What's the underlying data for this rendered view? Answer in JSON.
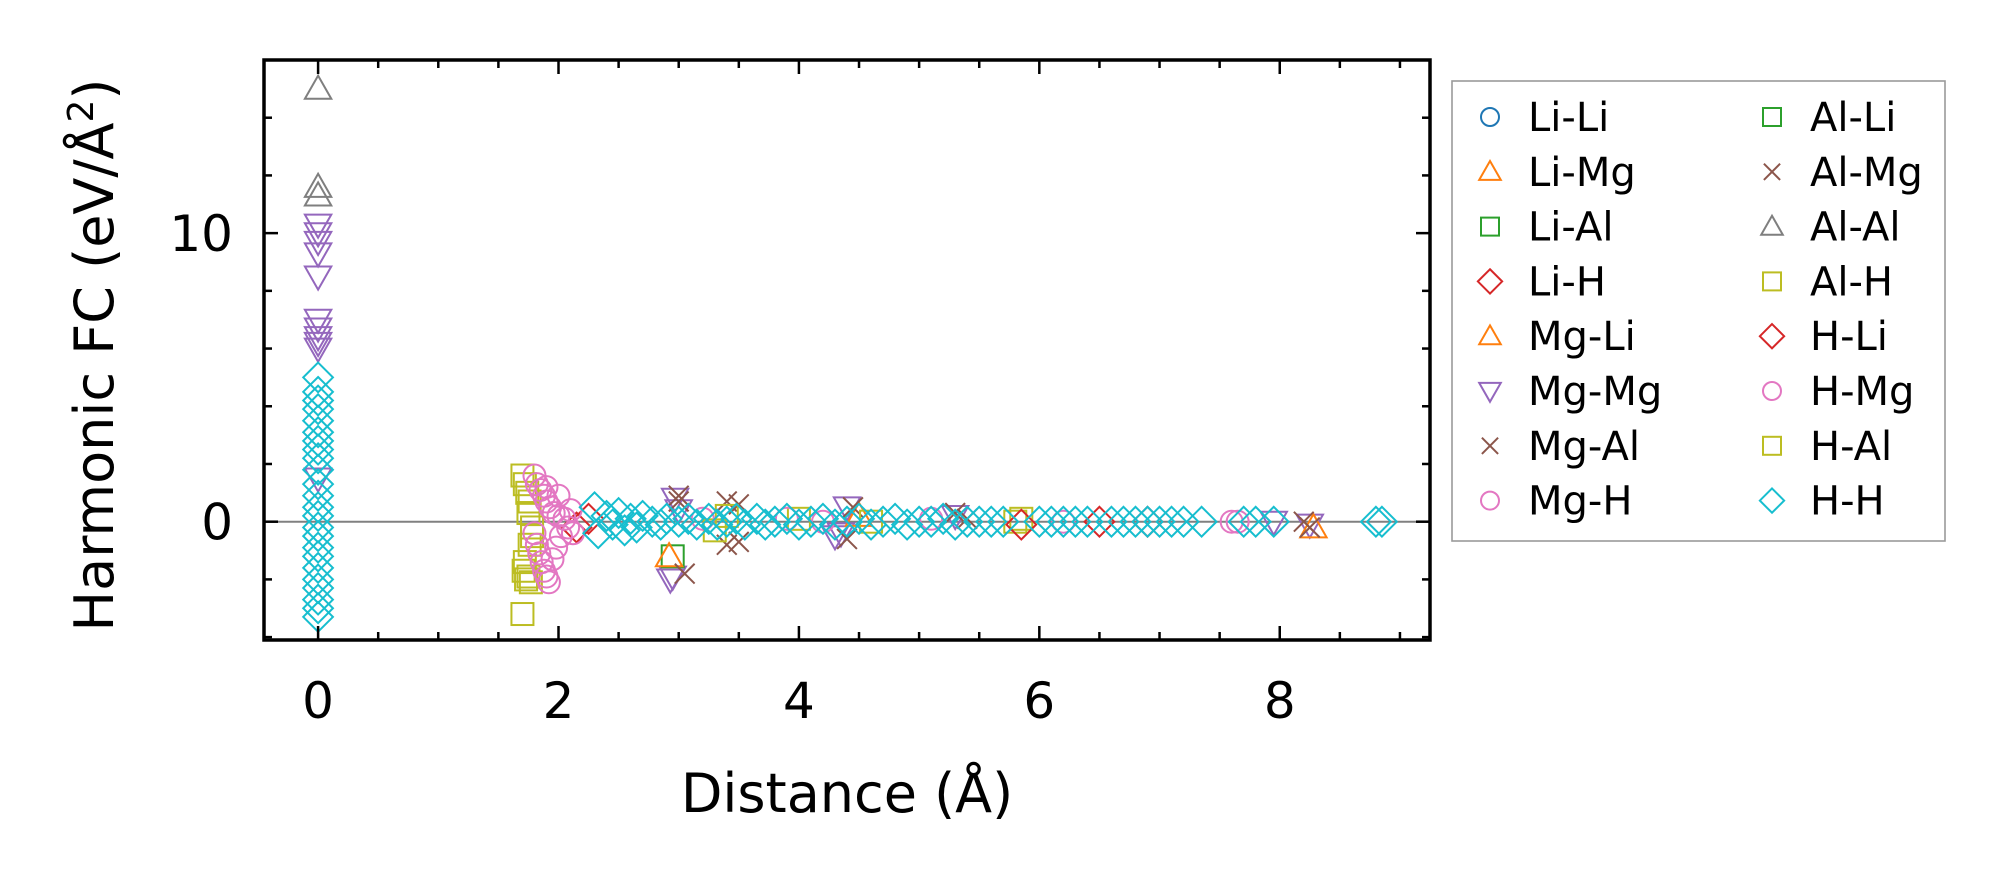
{
  "chart_data": {
    "type": "scatter",
    "title": "",
    "xlabel": "Distance (Å)",
    "ylabel_main": "Harmonic FC (eV/Å",
    "ylabel_sup": "2",
    "ylabel_close": ")",
    "xlim": [
      -0.45,
      9.25
    ],
    "ylim": [
      -4.1,
      16.0
    ],
    "xticks": [
      0,
      2,
      4,
      6,
      8
    ],
    "xtick_labels": [
      "0",
      "2",
      "4",
      "6",
      "8"
    ],
    "yticks": [
      0,
      10
    ],
    "ytick_labels": [
      "0",
      "10"
    ],
    "x_minor_step": 0.5,
    "y_minor_step": 2,
    "zero_line": true,
    "grid": false,
    "legend_position": "outside-right",
    "legend": [
      {
        "name": "Li-Li",
        "marker": "circle",
        "color": "#1f77b4"
      },
      {
        "name": "Li-Mg",
        "marker": "triangle-up",
        "color": "#ff7f0e"
      },
      {
        "name": "Li-Al",
        "marker": "square",
        "color": "#2ca02c"
      },
      {
        "name": "Li-H",
        "marker": "diamond",
        "color": "#d62728"
      },
      {
        "name": "Mg-Li",
        "marker": "triangle-up",
        "color": "#ff7f0e"
      },
      {
        "name": "Mg-Mg",
        "marker": "triangle-down",
        "color": "#9467bd"
      },
      {
        "name": "Mg-Al",
        "marker": "x",
        "color": "#8c564b"
      },
      {
        "name": "Mg-H",
        "marker": "circle",
        "color": "#e377c2"
      },
      {
        "name": "Al-Li",
        "marker": "square",
        "color": "#2ca02c"
      },
      {
        "name": "Al-Mg",
        "marker": "x",
        "color": "#8c564b"
      },
      {
        "name": "Al-Al",
        "marker": "triangle-up",
        "color": "#7f7f7f"
      },
      {
        "name": "Al-H",
        "marker": "square",
        "color": "#bcbd22"
      },
      {
        "name": "H-Li",
        "marker": "diamond",
        "color": "#d62728"
      },
      {
        "name": "H-Mg",
        "marker": "circle",
        "color": "#e377c2"
      },
      {
        "name": "H-Al",
        "marker": "square",
        "color": "#bcbd22"
      },
      {
        "name": "H-H",
        "marker": "diamond",
        "color": "#17becf"
      }
    ],
    "series": [
      {
        "name": "Al-Al",
        "marker": "triangle-up",
        "color": "#7f7f7f",
        "points": [
          [
            0,
            15.0
          ],
          [
            0,
            11.6
          ],
          [
            0,
            11.3
          ]
        ]
      },
      {
        "name": "Mg-Mg",
        "marker": "triangle-down",
        "color": "#9467bd",
        "points": [
          [
            0,
            10.3
          ],
          [
            0,
            10.0
          ],
          [
            0,
            9.7
          ],
          [
            0,
            9.3
          ],
          [
            0,
            8.5
          ],
          [
            0,
            7.0
          ],
          [
            0,
            6.7
          ],
          [
            0,
            6.4
          ],
          [
            0,
            6.2
          ],
          [
            0,
            6.0
          ],
          [
            0,
            1.5
          ],
          [
            2.97,
            0.8
          ],
          [
            2.95,
            -1.9
          ],
          [
            2.93,
            -2.0
          ],
          [
            3.0,
            0.4
          ],
          [
            4.4,
            0.5
          ],
          [
            4.3,
            -0.5
          ],
          [
            4.35,
            -0.4
          ],
          [
            7.95,
            0.0
          ],
          [
            8.25,
            -0.1
          ],
          [
            5.3,
            0.2
          ]
        ]
      },
      {
        "name": "Li-Al",
        "marker": "square",
        "color": "#2ca02c",
        "points": [
          [
            2.95,
            -1.2
          ]
        ]
      },
      {
        "name": "Li-Mg",
        "marker": "triangle-up",
        "color": "#ff7f0e",
        "points": [
          [
            2.92,
            -1.2
          ],
          [
            4.5,
            0.2
          ],
          [
            8.28,
            -0.2
          ]
        ]
      },
      {
        "name": "Mg-Al",
        "marker": "x",
        "color": "#8c564b",
        "points": [
          [
            3.0,
            0.9
          ],
          [
            3.05,
            -1.8
          ],
          [
            3.0,
            0.7
          ],
          [
            3.4,
            0.7
          ],
          [
            3.5,
            0.6
          ],
          [
            3.4,
            -0.8
          ],
          [
            3.5,
            -0.7
          ],
          [
            4.4,
            -0.6
          ],
          [
            4.45,
            0.5
          ],
          [
            5.3,
            0.3
          ],
          [
            5.4,
            0.1
          ],
          [
            8.2,
            0.0
          ],
          [
            8.25,
            -0.2
          ]
        ]
      },
      {
        "name": "Al-H",
        "marker": "square",
        "color": "#bcbd22",
        "points": [
          [
            1.7,
            1.6
          ],
          [
            1.72,
            1.3
          ],
          [
            1.74,
            1.0
          ],
          [
            1.76,
            0.7
          ],
          [
            1.75,
            0.3
          ],
          [
            1.78,
            -0.2
          ],
          [
            1.72,
            -1.4
          ],
          [
            1.71,
            -1.7
          ],
          [
            1.73,
            -2.0
          ],
          [
            1.75,
            -1.9
          ],
          [
            1.77,
            -2.1
          ],
          [
            1.7,
            -3.2
          ],
          [
            1.76,
            -0.8
          ],
          [
            1.78,
            -0.5
          ],
          [
            3.3,
            -0.3
          ],
          [
            3.4,
            0.2
          ],
          [
            4.0,
            0.1
          ],
          [
            4.6,
            0.0
          ],
          [
            5.8,
            0.0
          ],
          [
            5.85,
            0.1
          ]
        ]
      },
      {
        "name": "Li-H",
        "marker": "diamond",
        "color": "#d62728",
        "points": [
          [
            2.15,
            -0.2
          ],
          [
            2.25,
            0.1
          ],
          [
            5.85,
            -0.1
          ],
          [
            6.5,
            0.0
          ],
          [
            6.9,
            0.0
          ]
        ]
      },
      {
        "name": "H-Mg",
        "marker": "circle",
        "color": "#e377c2",
        "points": [
          [
            1.8,
            1.6
          ],
          [
            1.82,
            1.3
          ],
          [
            1.85,
            1.1
          ],
          [
            1.88,
            0.9
          ],
          [
            1.9,
            0.7
          ],
          [
            1.93,
            0.5
          ],
          [
            1.96,
            0.3
          ],
          [
            2.0,
            0.2
          ],
          [
            2.05,
            0.1
          ],
          [
            1.8,
            -0.4
          ],
          [
            1.82,
            -0.8
          ],
          [
            1.84,
            -1.1
          ],
          [
            1.86,
            -1.4
          ],
          [
            1.88,
            -1.7
          ],
          [
            1.9,
            -1.9
          ],
          [
            1.92,
            -2.1
          ],
          [
            1.95,
            -1.3
          ],
          [
            1.98,
            -0.9
          ],
          [
            2.02,
            -0.5
          ],
          [
            2.08,
            -0.2
          ],
          [
            1.9,
            1.2
          ],
          [
            2.0,
            0.9
          ],
          [
            2.1,
            0.4
          ],
          [
            2.12,
            -0.4
          ],
          [
            3.2,
            0.1
          ],
          [
            3.9,
            0.1
          ],
          [
            4.2,
            0.0
          ],
          [
            5.1,
            0.1
          ],
          [
            6.2,
            0.0
          ],
          [
            7.6,
            0.0
          ],
          [
            7.65,
            0.0
          ]
        ]
      },
      {
        "name": "H-H",
        "marker": "diamond",
        "color": "#17becf",
        "points": [
          [
            0,
            5.0
          ],
          [
            0,
            4.5
          ],
          [
            0,
            4.2
          ],
          [
            0,
            3.9
          ],
          [
            0,
            3.5
          ],
          [
            0,
            3.1
          ],
          [
            0,
            2.8
          ],
          [
            0,
            2.5
          ],
          [
            0,
            2.2
          ],
          [
            0,
            1.8
          ],
          [
            0,
            1.3
          ],
          [
            0,
            0.9
          ],
          [
            0,
            0.5
          ],
          [
            0,
            0.2
          ],
          [
            0,
            -0.2
          ],
          [
            0,
            -0.5
          ],
          [
            0,
            -0.9
          ],
          [
            0,
            -1.2
          ],
          [
            0,
            -1.6
          ],
          [
            0,
            -2.0
          ],
          [
            0,
            -2.3
          ],
          [
            0,
            -2.7
          ],
          [
            0,
            -3.0
          ],
          [
            0,
            -3.3
          ],
          [
            2.3,
            0.5
          ],
          [
            2.33,
            -0.4
          ],
          [
            2.4,
            0.2
          ],
          [
            2.45,
            -0.1
          ],
          [
            2.5,
            0.3
          ],
          [
            2.55,
            -0.3
          ],
          [
            2.6,
            0.1
          ],
          [
            2.65,
            -0.2
          ],
          [
            2.7,
            0.2
          ],
          [
            2.78,
            0.0
          ],
          [
            2.85,
            -0.1
          ],
          [
            2.9,
            0.1
          ],
          [
            3.0,
            0.0
          ],
          [
            3.08,
            0.1
          ],
          [
            3.15,
            -0.1
          ],
          [
            3.25,
            0.1
          ],
          [
            3.32,
            -0.1
          ],
          [
            3.4,
            0.0
          ],
          [
            3.48,
            0.1
          ],
          [
            3.55,
            -0.1
          ],
          [
            3.65,
            0.1
          ],
          [
            3.72,
            -0.1
          ],
          [
            3.8,
            0.0
          ],
          [
            3.9,
            0.1
          ],
          [
            4.0,
            -0.1
          ],
          [
            4.1,
            0.0
          ],
          [
            4.2,
            0.1
          ],
          [
            4.3,
            -0.1
          ],
          [
            4.4,
            0.0
          ],
          [
            4.5,
            0.1
          ],
          [
            4.6,
            -0.1
          ],
          [
            4.7,
            0.0
          ],
          [
            4.8,
            0.1
          ],
          [
            4.9,
            -0.1
          ],
          [
            5.0,
            0.0
          ],
          [
            5.1,
            0.0
          ],
          [
            5.2,
            0.1
          ],
          [
            5.3,
            -0.1
          ],
          [
            5.4,
            0.0
          ],
          [
            5.5,
            0.0
          ],
          [
            5.6,
            0.0
          ],
          [
            5.7,
            0.0
          ],
          [
            6.0,
            0.0
          ],
          [
            6.1,
            0.0
          ],
          [
            6.2,
            0.0
          ],
          [
            6.3,
            0.0
          ],
          [
            6.4,
            0.0
          ],
          [
            6.6,
            0.0
          ],
          [
            6.7,
            0.0
          ],
          [
            6.8,
            0.0
          ],
          [
            6.9,
            0.0
          ],
          [
            7.0,
            0.0
          ],
          [
            7.1,
            0.0
          ],
          [
            7.2,
            0.0
          ],
          [
            7.35,
            0.0
          ],
          [
            7.7,
            0.0
          ],
          [
            7.8,
            0.0
          ],
          [
            7.95,
            0.0
          ],
          [
            8.8,
            0.0
          ],
          [
            8.85,
            0.0
          ]
        ]
      }
    ]
  }
}
